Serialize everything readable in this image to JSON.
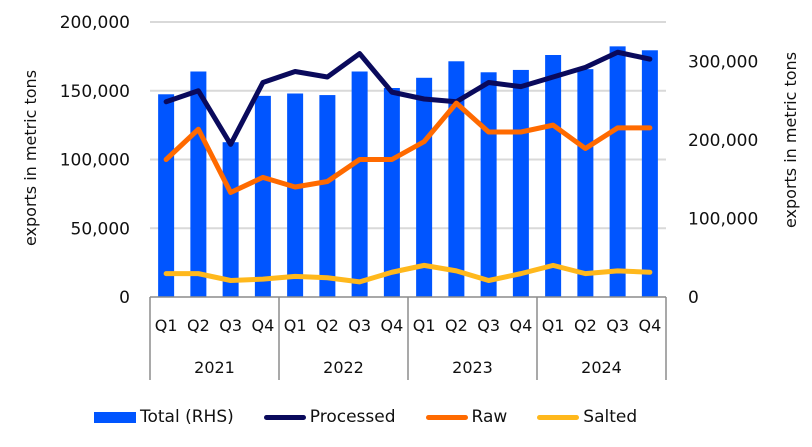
{
  "chart_data": {
    "type": "bar-line-combo",
    "title": "",
    "categories": [
      "Q1",
      "Q2",
      "Q3",
      "Q4",
      "Q1",
      "Q2",
      "Q3",
      "Q4",
      "Q1",
      "Q2",
      "Q3",
      "Q4",
      "Q1",
      "Q2",
      "Q3",
      "Q4"
    ],
    "groups": [
      {
        "label": "2021",
        "count": 4
      },
      {
        "label": "2022",
        "count": 4
      },
      {
        "label": "2023",
        "count": 4
      },
      {
        "label": "2024",
        "count": 4
      }
    ],
    "ylabel_left": "exports in metric tons",
    "ylabel_right": "exports in metric tons",
    "ylim_left": [
      0,
      200000
    ],
    "ylim_right": [
      0,
      350000
    ],
    "yticks_left": [
      "0",
      "50,000",
      "100,000",
      "150,000",
      "200,000"
    ],
    "yticks_left_values": [
      0,
      50000,
      100000,
      150000,
      200000
    ],
    "yticks_right": [
      "0",
      "100,000",
      "200,000",
      "300,000"
    ],
    "yticks_right_values": [
      0,
      100000,
      200000,
      300000
    ],
    "grid": true,
    "legend_position": "bottom",
    "series": [
      {
        "name": "Total (RHS)",
        "type": "bar",
        "axis": "right",
        "color": "#0055ff",
        "values": [
          258000,
          287000,
          197000,
          256000,
          259000,
          257000,
          287000,
          266000,
          279000,
          300000,
          286000,
          289000,
          308000,
          290000,
          319000,
          314000
        ]
      },
      {
        "name": "Processed",
        "type": "line",
        "axis": "left",
        "color": "#0a0a5c",
        "values": [
          142000,
          150000,
          111000,
          156000,
          164000,
          160000,
          177000,
          149000,
          144000,
          142000,
          156000,
          153000,
          160000,
          167000,
          178000,
          173000
        ]
      },
      {
        "name": "Raw",
        "type": "line",
        "axis": "left",
        "color": "#ff6a00",
        "values": [
          100000,
          122000,
          76000,
          87000,
          80000,
          84000,
          100000,
          100000,
          113000,
          141000,
          120000,
          120000,
          125000,
          108000,
          123000,
          123000
        ]
      },
      {
        "name": "Salted",
        "type": "line",
        "axis": "left",
        "color": "#ffb81c",
        "values": [
          17000,
          17000,
          12000,
          13000,
          15000,
          14000,
          11000,
          18000,
          23000,
          19000,
          12000,
          17000,
          23000,
          17000,
          19000,
          18000
        ]
      }
    ]
  }
}
